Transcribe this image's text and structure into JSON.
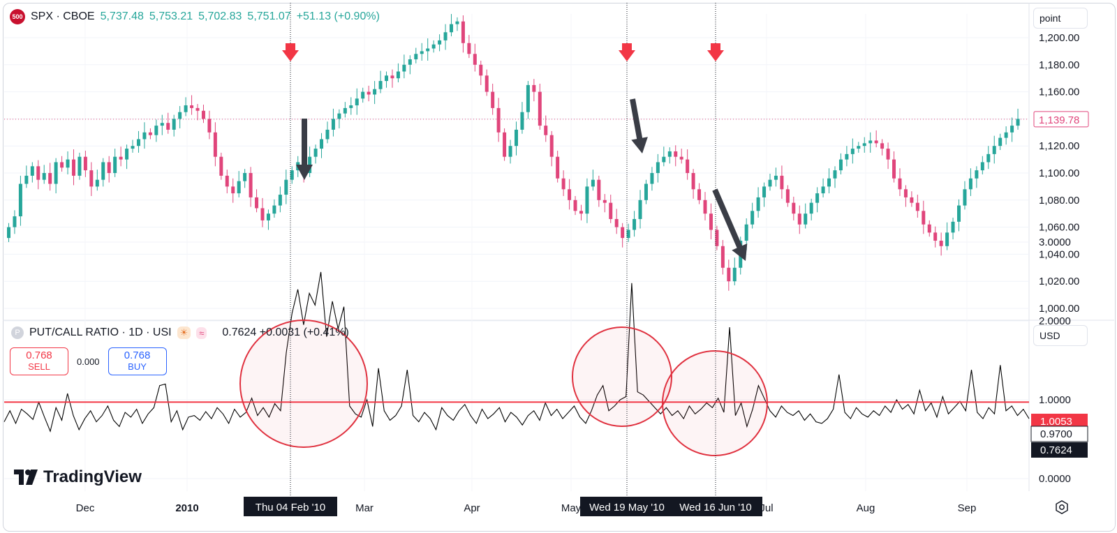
{
  "header": {
    "badge": "500",
    "symbol": "SPX · CBOE",
    "open": "5,737.48",
    "high": "5,753.21",
    "low": "5,702.83",
    "close": "5,751.07",
    "change": "+51.13 (+0.90%)"
  },
  "indicator_header": {
    "badge": "P",
    "title": "PUT/CALL RATIO · 1D · USI",
    "weather_icon": "☀",
    "wave_icon": "≈",
    "value": "0.7624 +0.0031 (+0.41%)"
  },
  "trade": {
    "sell_price": "0.768",
    "sell_label": "SELL",
    "spread": "0.000",
    "buy_price": "0.768",
    "buy_label": "BUY"
  },
  "scale_buttons": {
    "price": "point",
    "indicator": "USD"
  },
  "logo": {
    "text": "TradingView"
  },
  "colors": {
    "up": "#26a69a",
    "down": "#e0457b",
    "signal": "#f23645",
    "ratio_line": "#000000",
    "circle": "#e0313f"
  },
  "chart_data": [
    {
      "type": "candlestick",
      "title": "SPX · CBOE",
      "ylim": [
        990,
        1220
      ],
      "yticks": [
        "1,000.00",
        "1,020.00",
        "1,040.00",
        "1,060.00",
        "1,080.00",
        "1,100.00",
        "1,120.00",
        "1,140.00",
        "1,160.00",
        "1,180.00",
        "1,200.00"
      ],
      "current_price_label": "1,139.78",
      "xtick_labels": [
        "Dec",
        "2010",
        "Mar",
        "Apr",
        "May",
        "Jul",
        "Aug",
        "Sep"
      ],
      "close_path": [
        1060,
        1068,
        1092,
        1098,
        1105,
        1095,
        1100,
        1092,
        1108,
        1104,
        1110,
        1098,
        1112,
        1102,
        1090,
        1095,
        1108,
        1100,
        1112,
        1110,
        1118,
        1120,
        1125,
        1130,
        1128,
        1135,
        1137,
        1132,
        1140,
        1145,
        1150,
        1148,
        1146,
        1140,
        1130,
        1112,
        1098,
        1090,
        1085,
        1094,
        1100,
        1082,
        1074,
        1065,
        1070,
        1076,
        1084,
        1095,
        1102,
        1108,
        1100,
        1112,
        1118,
        1125,
        1132,
        1140,
        1144,
        1148,
        1150,
        1155,
        1160,
        1158,
        1162,
        1168,
        1172,
        1170,
        1175,
        1180,
        1184,
        1188,
        1190,
        1192,
        1195,
        1198,
        1204,
        1210,
        1212,
        1196,
        1188,
        1180,
        1172,
        1160,
        1148,
        1130,
        1112,
        1120,
        1132,
        1145,
        1165,
        1160,
        1135,
        1128,
        1112,
        1096,
        1088,
        1080,
        1072,
        1070,
        1090,
        1095,
        1080,
        1078,
        1066,
        1060,
        1052,
        1058,
        1066,
        1080,
        1092,
        1100,
        1108,
        1112,
        1116,
        1112,
        1110,
        1100,
        1088,
        1080,
        1070,
        1058,
        1046,
        1030,
        1020,
        1030,
        1050,
        1062,
        1072,
        1082,
        1090,
        1095,
        1098,
        1088,
        1078,
        1070,
        1062,
        1070,
        1078,
        1085,
        1090,
        1096,
        1102,
        1110,
        1114,
        1118,
        1120,
        1122,
        1124,
        1122,
        1118,
        1110,
        1096,
        1088,
        1082,
        1078,
        1072,
        1062,
        1056,
        1050,
        1046,
        1056,
        1064,
        1076,
        1088,
        1096,
        1102,
        1108,
        1114,
        1120,
        1126,
        1130,
        1135,
        1140
      ],
      "signal_dates": [
        "Thu 04 Feb '10",
        "Wed 19 May '10",
        "Wed 16 Jun '10"
      ]
    },
    {
      "type": "line",
      "title": "PUT/CALL RATIO · 1D · USI",
      "ylim": [
        0,
        3.5
      ],
      "yticks": [
        "0.0000",
        "1.0000",
        "2.0000",
        "3.0000"
      ],
      "reference_line": 0.97,
      "price_labels": [
        "1.0053",
        "0.9700",
        "0.7624"
      ],
      "values": [
        0.72,
        0.86,
        0.7,
        0.88,
        0.82,
        0.75,
        0.97,
        0.78,
        0.6,
        0.9,
        0.74,
        1.08,
        0.8,
        0.62,
        0.76,
        0.86,
        0.72,
        0.8,
        0.92,
        0.74,
        0.66,
        0.84,
        0.78,
        0.88,
        0.7,
        0.82,
        0.9,
        1.18,
        1.2,
        0.72,
        0.86,
        0.62,
        0.78,
        0.8,
        0.74,
        0.85,
        0.76,
        0.9,
        0.82,
        0.7,
        0.88,
        0.78,
        0.84,
        1.02,
        0.8,
        0.9,
        0.78,
        0.95,
        0.86,
        1.6,
        2.1,
        2.4,
        1.95,
        2.35,
        2.2,
        2.62,
        1.8,
        2.25,
        1.9,
        2.18,
        0.92,
        0.82,
        0.78,
        1.0,
        0.66,
        1.4,
        0.86,
        0.74,
        0.8,
        0.92,
        1.38,
        0.8,
        0.72,
        0.84,
        0.76,
        0.62,
        0.9,
        0.8,
        0.74,
        0.86,
        0.94,
        0.8,
        0.7,
        0.88,
        0.76,
        0.82,
        0.9,
        0.72,
        0.84,
        0.78,
        0.68,
        0.8,
        0.86,
        0.74,
        0.96,
        0.8,
        0.88,
        0.76,
        0.84,
        0.92,
        0.78,
        0.7,
        0.86,
        1.06,
        1.18,
        0.86,
        0.92,
        1.0,
        1.04,
        2.48,
        1.1,
        1.06,
        0.98,
        0.9,
        0.82,
        0.9,
        0.8,
        0.86,
        0.76,
        0.92,
        0.82,
        0.88,
        0.96,
        0.9,
        1.02,
        0.84,
        1.92,
        0.8,
        0.96,
        0.66,
        0.88,
        1.18,
        1.02,
        0.86,
        0.78,
        0.92,
        0.84,
        0.8,
        0.86,
        0.74,
        0.82,
        0.72,
        0.7,
        0.76,
        0.88,
        1.32,
        0.84,
        0.76,
        0.9,
        0.82,
        0.78,
        0.86,
        0.8,
        0.92,
        0.84,
        1.0,
        0.88,
        0.94,
        0.82,
        1.12,
        0.86,
        0.96,
        0.78,
        1.04,
        0.82,
        0.9,
        0.98,
        0.86,
        1.38,
        0.84,
        0.76,
        0.9,
        0.82,
        1.44,
        0.86,
        0.92,
        0.8,
        0.88,
        0.76
      ]
    }
  ]
}
